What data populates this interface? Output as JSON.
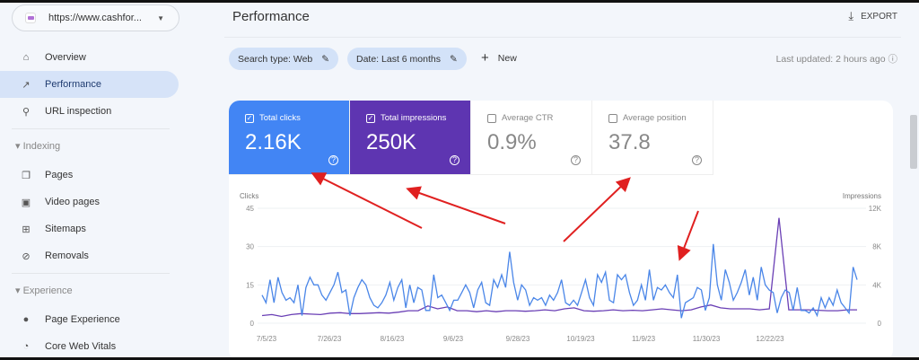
{
  "sidebar": {
    "property": "https://www.cashfor...",
    "items": [
      {
        "label": "Overview",
        "icon": "home-icon"
      },
      {
        "label": "Performance",
        "icon": "trending-up-icon",
        "active": true
      },
      {
        "label": "URL inspection",
        "icon": "search-icon"
      }
    ],
    "indexing": {
      "label": "Indexing",
      "items": [
        {
          "label": "Pages",
          "icon": "pages-icon"
        },
        {
          "label": "Video pages",
          "icon": "video-pages-icon"
        },
        {
          "label": "Sitemaps",
          "icon": "sitemap-icon"
        },
        {
          "label": "Removals",
          "icon": "removals-icon"
        }
      ]
    },
    "experience": {
      "label": "Experience",
      "items": [
        {
          "label": "Page Experience",
          "icon": "page-experience-icon"
        },
        {
          "label": "Core Web Vitals",
          "icon": "gauge-icon"
        }
      ]
    }
  },
  "header": {
    "title": "Performance",
    "export": "EXPORT"
  },
  "filters": {
    "search_type": "Search type: Web",
    "date": "Date: Last 6 months",
    "new": "New",
    "last_updated": "Last updated: 2 hours ago"
  },
  "metrics": [
    {
      "label": "Total clicks",
      "value": "2.16K",
      "checked": true,
      "color": "#4285f4"
    },
    {
      "label": "Total impressions",
      "value": "250K",
      "checked": true,
      "color": "#5e35b1"
    },
    {
      "label": "Average CTR",
      "value": "0.9%",
      "checked": false
    },
    {
      "label": "Average position",
      "value": "37.8",
      "checked": false
    }
  ],
  "chart_data": {
    "type": "line",
    "left_axis_label": "Clicks",
    "right_axis_label": "Impressions",
    "left_ylim": [
      0,
      45
    ],
    "right_ylim": [
      0,
      12000
    ],
    "left_ticks": [
      "0",
      "15",
      "30",
      "45"
    ],
    "right_ticks": [
      "0",
      "4K",
      "8K",
      "12K"
    ],
    "x_ticks": [
      "7/5/23",
      "7/26/23",
      "8/16/23",
      "9/6/23",
      "9/28/23",
      "10/19/23",
      "11/9/23",
      "11/30/23",
      "12/22/23"
    ],
    "grid": true,
    "series": [
      {
        "name": "Clicks",
        "axis": "left",
        "color": "#4a86e8",
        "values": [
          11,
          8,
          17,
          8,
          18,
          12,
          9,
          10,
          8,
          15,
          3,
          14,
          18,
          15,
          15,
          11,
          9,
          12,
          15,
          20,
          12,
          13,
          3,
          10,
          14,
          17,
          15,
          10,
          7,
          6,
          8,
          11,
          16,
          9,
          14,
          17,
          6,
          15,
          8,
          14,
          13,
          5,
          5,
          19,
          10,
          11,
          8,
          5,
          9,
          9,
          12,
          15,
          12,
          6,
          13,
          16,
          8,
          7,
          17,
          14,
          19,
          14,
          28,
          16,
          9,
          15,
          13,
          7,
          10,
          9,
          10,
          7,
          11,
          9,
          12,
          17,
          8,
          7,
          9,
          7,
          12,
          17,
          10,
          7,
          19,
          16,
          20,
          9,
          8,
          19,
          17,
          19,
          12,
          7,
          9,
          15,
          9,
          21,
          9,
          14,
          13,
          15,
          12,
          10,
          19,
          2,
          8,
          9,
          10,
          14,
          13,
          5,
          10,
          31,
          15,
          9,
          21,
          16,
          9,
          12,
          16,
          21,
          11,
          18,
          9,
          22,
          15,
          13,
          12,
          4,
          10,
          13,
          12,
          5,
          14,
          5,
          5,
          4,
          6,
          3,
          10,
          6,
          10,
          7,
          13,
          8,
          6,
          4,
          22,
          17
        ]
      },
      {
        "name": "Impressions",
        "axis": "right",
        "color": "#6a3fb5",
        "values": [
          800,
          900,
          700,
          900,
          1000,
          950,
          900,
          1050,
          1100,
          1000,
          1000,
          1050,
          1100,
          1050,
          1150,
          1300,
          1300,
          1800,
          1500,
          1700,
          1300,
          1300,
          1200,
          1300,
          1200,
          1300,
          1300,
          1250,
          1300,
          1400,
          1300,
          1500,
          1600,
          1300,
          1250,
          1300,
          1400,
          1300,
          1350,
          1300,
          1400,
          1500,
          1400,
          1300,
          1400,
          1700,
          1900,
          1600,
          1500,
          1500,
          1500,
          1400,
          1500,
          11000,
          1400,
          1400,
          1400,
          1350,
          1300,
          1300,
          1400,
          1400
        ]
      }
    ]
  },
  "colors": {
    "annotation_arrow": "#e02020",
    "active_nav": "#d6e3f8"
  }
}
